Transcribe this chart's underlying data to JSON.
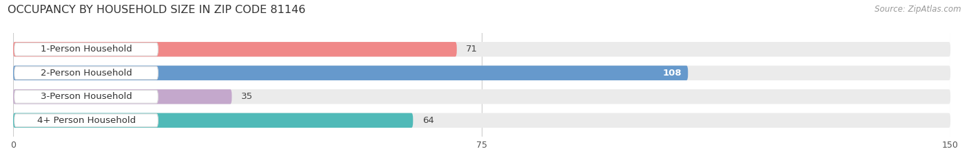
{
  "title": "OCCUPANCY BY HOUSEHOLD SIZE IN ZIP CODE 81146",
  "source": "Source: ZipAtlas.com",
  "categories": [
    "1-Person Household",
    "2-Person Household",
    "3-Person Household",
    "4+ Person Household"
  ],
  "values": [
    71,
    108,
    35,
    64
  ],
  "bar_colors": [
    "#f08888",
    "#6699cc",
    "#c4a8cc",
    "#50bab8"
  ],
  "xlim": [
    0,
    150
  ],
  "xticks": [
    0,
    75,
    150
  ],
  "background_color": "#ffffff",
  "bar_background_color": "#ebebeb",
  "title_fontsize": 11.5,
  "source_fontsize": 8.5,
  "label_fontsize": 9.5,
  "value_fontsize": 9.5,
  "bar_height": 0.62,
  "figsize": [
    14.06,
    2.33
  ]
}
